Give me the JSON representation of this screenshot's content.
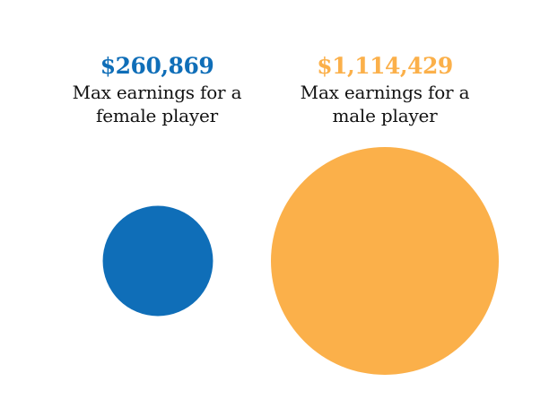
{
  "chart_data": {
    "type": "bubble",
    "series": [
      {
        "id": "female",
        "value": 260869,
        "amount_label": "$260,869",
        "caption_line1": "Max earnings for a",
        "caption_line2": "female player",
        "color": "#0f6eb8"
      },
      {
        "id": "male",
        "value": 1114429,
        "amount_label": "$1,114,429",
        "caption_line1": "Max earnings for a",
        "caption_line2": "male player",
        "color": "#fbb04a"
      }
    ]
  }
}
